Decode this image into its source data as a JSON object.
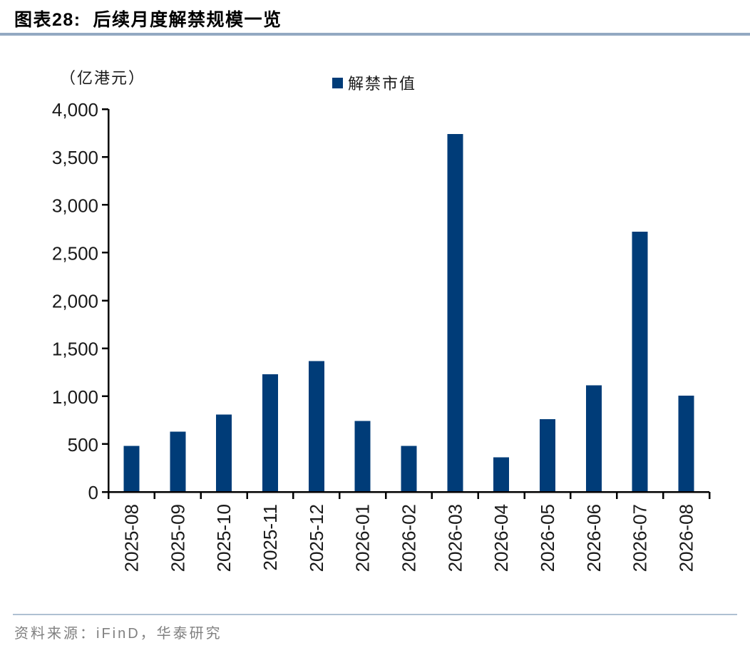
{
  "header": {
    "figure_label": "图表28:",
    "title_text": "图表28:  后续月度解禁规模一览"
  },
  "chart_data": {
    "type": "bar",
    "title": "后续月度解禁规模一览",
    "unit_label": "（亿港元）",
    "xlabel": "",
    "ylabel": "亿港元",
    "ylim": [
      0,
      4000
    ],
    "ytick_step": 500,
    "ytick_labels": [
      "0",
      "500",
      "1,000",
      "1,500",
      "2,000",
      "2,500",
      "3,000",
      "3,500",
      "4,000"
    ],
    "grid": false,
    "legend_position": "top-center",
    "categories": [
      "2025-08",
      "2025-09",
      "2025-10",
      "2025-11",
      "2025-12",
      "2026-01",
      "2026-02",
      "2026-03",
      "2026-04",
      "2026-05",
      "2026-06",
      "2026-07",
      "2026-08"
    ],
    "series": [
      {
        "name": "解禁市值",
        "color": "#003C78",
        "values": [
          480,
          630,
          810,
          1230,
          1365,
          740,
          480,
          3740,
          360,
          760,
          1115,
          2720,
          1005
        ]
      }
    ]
  },
  "footer": {
    "source": "资料来源：iFinD，华泰研究"
  },
  "colors": {
    "bar": "#003C78",
    "axis": "#000000",
    "tick_label": "#1a1a1a",
    "title_underline": "#93A9C2",
    "source_divider": "#AFC0D2",
    "source_text": "#808080"
  }
}
